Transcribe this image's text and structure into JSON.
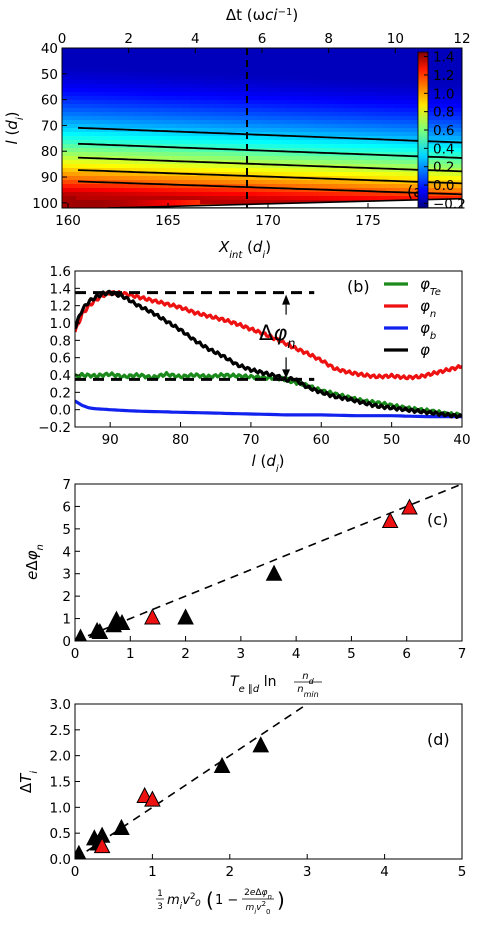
{
  "chart_data": [
    {
      "panel": "(a)",
      "type": "heatmap",
      "top_axis_label": "Δt (ω_ci⁻¹)",
      "top_axis_ticks": [
        "0",
        "2",
        "4",
        "6",
        "8",
        "10",
        "12"
      ],
      "xlabel": "X_int (d_i)",
      "x_ticks": [
        "160",
        "165",
        "170",
        "175"
      ],
      "xlim": [
        159.7,
        179.7
      ],
      "ylabel": "l (d_i)",
      "y_ticks": [
        "40",
        "50",
        "60",
        "70",
        "80",
        "90",
        "100"
      ],
      "ylim": [
        102,
        40
      ],
      "colorbar_ticks": [
        "1.4",
        "1.2",
        "1.0",
        "0.8",
        "0.6",
        "0.4",
        "0.2",
        "0.0",
        "−0.2"
      ],
      "colorbar_range": [
        -0.25,
        1.45
      ],
      "colormap": "jet",
      "contour_levels": [
        0.3,
        0.5,
        0.7,
        0.9,
        1.1
      ],
      "dashed_marker_x": 169.3,
      "text_annotations": []
    },
    {
      "panel": "(b)",
      "type": "line",
      "xlabel": "l (d_i)",
      "x_ticks": [
        "90",
        "80",
        "70",
        "60",
        "50",
        "40"
      ],
      "xlim": [
        95,
        40
      ],
      "y_ticks": [
        "−0.2",
        "0.0",
        "0.2",
        "0.4",
        "0.6",
        "0.8",
        "1.0",
        "1.2",
        "1.4",
        "1.6"
      ],
      "ylim": [
        -0.2,
        1.6
      ],
      "legend_position": "right",
      "annotation": "Δφ_n",
      "series": [
        {
          "name": "φ_Te",
          "color": "#1a8a1a",
          "x": [
            95,
            94,
            92,
            90,
            88,
            86,
            84,
            82,
            80,
            78,
            76,
            74,
            72,
            70,
            68,
            66,
            65,
            64,
            62,
            60,
            58,
            56,
            54,
            52,
            50,
            48,
            46,
            44,
            42,
            40
          ],
          "y": [
            0.38,
            0.4,
            0.39,
            0.41,
            0.38,
            0.4,
            0.37,
            0.41,
            0.38,
            0.4,
            0.38,
            0.4,
            0.39,
            0.38,
            0.37,
            0.36,
            0.35,
            0.32,
            0.28,
            0.22,
            0.18,
            0.14,
            0.1,
            0.08,
            0.05,
            0.02,
            0.0,
            -0.02,
            -0.05,
            -0.06
          ]
        },
        {
          "name": "φ_n",
          "color": "#ee1111",
          "x": [
            95,
            94,
            93,
            92,
            91,
            90,
            88,
            86,
            84,
            82,
            80,
            78,
            76,
            74,
            72,
            70,
            68,
            66,
            64,
            62,
            60,
            58,
            56,
            54,
            52,
            50,
            48,
            46,
            44,
            42,
            40
          ],
          "y": [
            0.9,
            1.1,
            1.2,
            1.27,
            1.32,
            1.35,
            1.34,
            1.3,
            1.26,
            1.22,
            1.18,
            1.12,
            1.08,
            1.04,
            0.99,
            0.93,
            0.87,
            0.8,
            0.72,
            0.65,
            0.57,
            0.47,
            0.43,
            0.4,
            0.38,
            0.39,
            0.37,
            0.38,
            0.42,
            0.46,
            0.5
          ]
        },
        {
          "name": "φ_b",
          "color": "#1122ee",
          "x": [
            95,
            94,
            93,
            92,
            90,
            88,
            85,
            80,
            75,
            70,
            65,
            60,
            55,
            50,
            45,
            40
          ],
          "y": [
            0.1,
            0.05,
            0.02,
            0.01,
            0.0,
            -0.01,
            -0.02,
            -0.03,
            -0.04,
            -0.05,
            -0.06,
            -0.06,
            -0.07,
            -0.07,
            -0.08,
            -0.08
          ]
        },
        {
          "name": "φ",
          "color": "#000000",
          "x": [
            95,
            94,
            93,
            92,
            91,
            90,
            89,
            88,
            86,
            84,
            82,
            80,
            78,
            76,
            74,
            72,
            70,
            68,
            66,
            65,
            64,
            62,
            60,
            58,
            56,
            54,
            52,
            50,
            48,
            46,
            44,
            42,
            40
          ],
          "y": [
            0.95,
            1.15,
            1.25,
            1.3,
            1.34,
            1.35,
            1.33,
            1.3,
            1.2,
            1.12,
            1.02,
            0.92,
            0.8,
            0.7,
            0.62,
            0.52,
            0.46,
            0.42,
            0.38,
            0.34,
            0.36,
            0.26,
            0.2,
            0.15,
            0.12,
            0.08,
            0.04,
            0.02,
            0.0,
            -0.02,
            -0.04,
            -0.06,
            -0.08
          ]
        }
      ],
      "reference_lines": {
        "upper": 1.35,
        "lower": 0.35,
        "x_range": [
          95,
          61
        ],
        "arrow_x": 65
      }
    },
    {
      "panel": "(c)",
      "type": "scatter",
      "xlabel": "T_e∥d ln n_d/n_min",
      "ylabel": "eΔφ_n",
      "x_ticks": [
        "0",
        "1",
        "2",
        "3",
        "4",
        "5",
        "6",
        "7"
      ],
      "y_ticks": [
        "0",
        "1",
        "2",
        "3",
        "4",
        "5",
        "6",
        "7"
      ],
      "xlim": [
        0,
        7
      ],
      "ylim": [
        0,
        7
      ],
      "fit_line": [
        [
          0,
          0
        ],
        [
          7,
          7
        ]
      ],
      "series": [
        {
          "color": "#000000",
          "x": [
            0.1,
            0.4,
            0.45,
            0.7,
            0.75,
            0.85,
            2.0,
            3.6
          ],
          "y": [
            0.15,
            0.45,
            0.4,
            0.7,
            0.95,
            0.8,
            1.05,
            3.0
          ]
        },
        {
          "color": "#ee1111",
          "x": [
            1.4,
            5.7,
            6.05
          ],
          "y": [
            1.05,
            5.35,
            5.95
          ]
        }
      ]
    },
    {
      "panel": "(d)",
      "type": "scatter",
      "xlabel": "(1/3) m_i v_0² (1 − 2eΔφ_n / m_i v_0²)",
      "ylabel": "ΔT_i",
      "x_ticks": [
        "0",
        "1",
        "2",
        "3",
        "4",
        "5"
      ],
      "y_ticks": [
        "0.0",
        "0.5",
        "1.0",
        "1.5",
        "2.0",
        "2.5",
        "3.0"
      ],
      "xlim": [
        0,
        5
      ],
      "ylim": [
        0,
        3
      ],
      "fit_line": [
        [
          0,
          0
        ],
        [
          3,
          3
        ]
      ],
      "series": [
        {
          "color": "#000000",
          "x": [
            0.05,
            0.25,
            0.3,
            0.35,
            0.6,
            1.9,
            2.4
          ],
          "y": [
            0.1,
            0.4,
            0.3,
            0.45,
            0.6,
            1.8,
            2.2
          ]
        },
        {
          "color": "#ee1111",
          "x": [
            0.35,
            0.9,
            1.0
          ],
          "y": [
            0.25,
            1.22,
            1.15
          ]
        }
      ]
    }
  ]
}
